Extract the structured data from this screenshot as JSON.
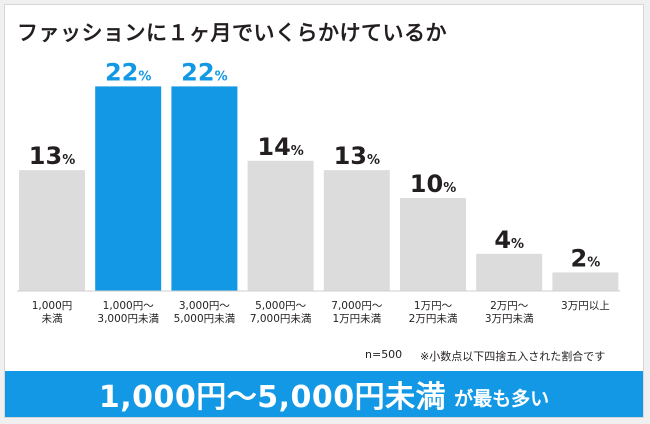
{
  "chart_data": {
    "type": "bar",
    "title": "ファッションに１ヶ月でいくらかけているか",
    "categories": [
      "1,000円\n未満",
      "1,000円～\n3,000円未満",
      "3,000円～\n5,000円未満",
      "5,000円～\n7,000円未満",
      "7,000円～\n1万円未満",
      "1万円～\n2万円未満",
      "2万円～\n3万円未満",
      "3万円以上"
    ],
    "values": [
      13,
      22,
      22,
      14,
      13,
      10,
      4,
      2
    ],
    "value_suffix": "%",
    "highlight": [
      false,
      true,
      true,
      false,
      false,
      false,
      false,
      false
    ],
    "ylim": [
      0,
      25
    ],
    "xlabel": "",
    "ylabel": "",
    "grid": false,
    "colors": {
      "bar": "#dcdcdc",
      "highlight_bar": "#1398e6",
      "label": "#231f20",
      "highlight_label": "#1398e6"
    }
  },
  "notes": {
    "sample": "n=500",
    "rounding": "※小数点以下四捨五入された割合です"
  },
  "banner": {
    "main": "1,000円～5,000円未満",
    "sub": "が最も多い",
    "color": "#1398e6"
  }
}
